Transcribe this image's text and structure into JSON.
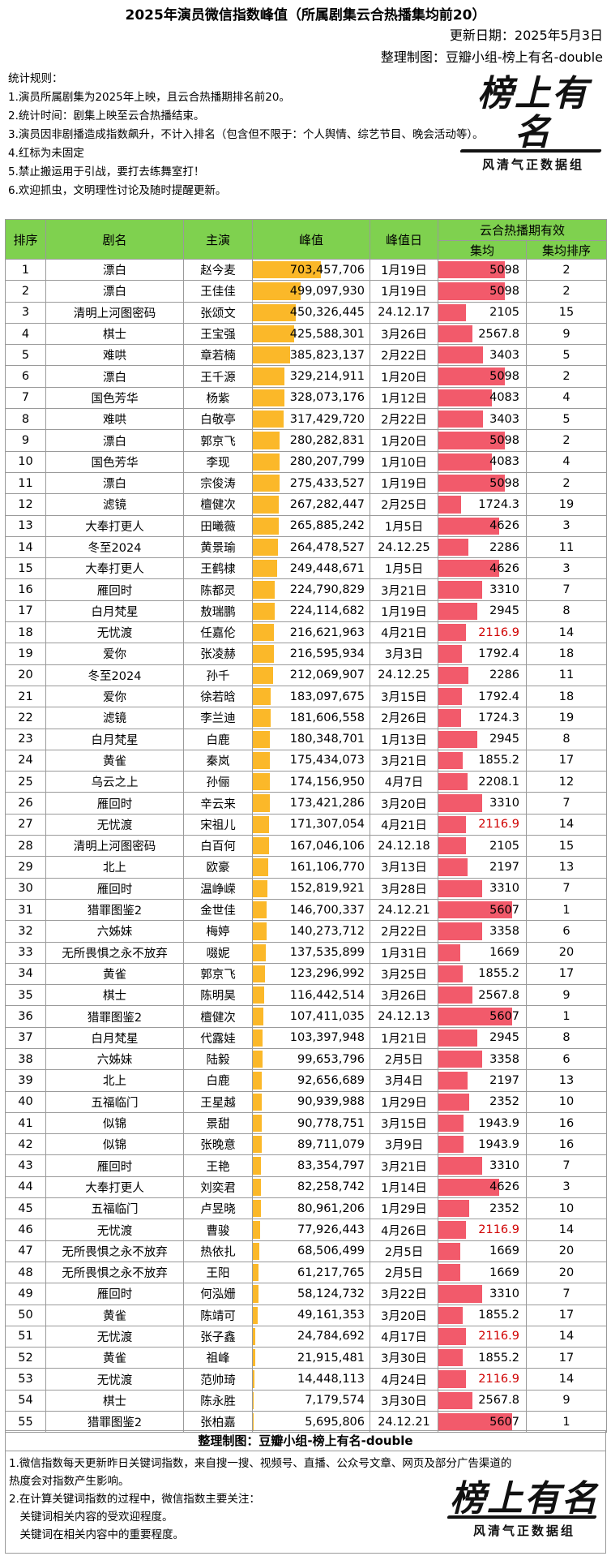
{
  "header": {
    "title": "2025年演员微信指数峰值（所属剧集云合热播集均前20）",
    "update_date": "更新日期：2025年5月3日",
    "author": "整理制图：豆瓣小组-榜上有名-double"
  },
  "rules": [
    "统计规则：",
    "1.演员所属剧集为2025年上映，且云合热播期排名前20。",
    "2.统计时间：剧集上映至云合热播结束。",
    "3.演员因非剧播造成指数飙升，不计入排名（包含但不限于：个人舆情、综艺节目、晚会活动等）。",
    "4.红标为未固定",
    "5.禁止搬运用于引战，要打去练舞室打！",
    "6.欢迎抓虫，文明理性讨论及随时提醒更新。"
  ],
  "logo": {
    "text": "榜上有名",
    "sub": "风清气正数据组"
  },
  "table": {
    "headers": {
      "rank": "排序",
      "drama": "剧名",
      "actor": "主演",
      "peak": "峰值",
      "peak_date": "峰值日",
      "yunhe": "云合热播期有效",
      "avg": "集均",
      "avg_rank": "集均排序"
    },
    "rows": [
      {
        "rank": "1",
        "drama": "漂白",
        "actor": "赵今麦",
        "peak": "703,457,706",
        "peak_value": 703457706,
        "date": "1月19日",
        "avg": "5098",
        "avg_value": 5098,
        "avg_red": false,
        "avg_rank": "2"
      },
      {
        "rank": "2",
        "drama": "漂白",
        "actor": "王佳佳",
        "peak": "499,097,930",
        "peak_value": 499097930,
        "date": "1月19日",
        "avg": "5098",
        "avg_value": 5098,
        "avg_red": false,
        "avg_rank": "2"
      },
      {
        "rank": "3",
        "drama": "清明上河图密码",
        "actor": "张颂文",
        "peak": "450,326,445",
        "peak_value": 450326445,
        "date": "24.12.17",
        "avg": "2105",
        "avg_value": 2105,
        "avg_red": false,
        "avg_rank": "15"
      },
      {
        "rank": "4",
        "drama": "棋士",
        "actor": "王宝强",
        "peak": "425,588,301",
        "peak_value": 425588301,
        "date": "3月26日",
        "avg": "2567.8",
        "avg_value": 2567.8,
        "avg_red": false,
        "avg_rank": "9"
      },
      {
        "rank": "5",
        "drama": "难哄",
        "actor": "章若楠",
        "peak": "385,823,137",
        "peak_value": 385823137,
        "date": "2月22日",
        "avg": "3403",
        "avg_value": 3403,
        "avg_red": false,
        "avg_rank": "5"
      },
      {
        "rank": "6",
        "drama": "漂白",
        "actor": "王千源",
        "peak": "329,214,911",
        "peak_value": 329214911,
        "date": "1月20日",
        "avg": "5098",
        "avg_value": 5098,
        "avg_red": false,
        "avg_rank": "2"
      },
      {
        "rank": "7",
        "drama": "国色芳华",
        "actor": "杨紫",
        "peak": "328,073,176",
        "peak_value": 328073176,
        "date": "1月12日",
        "avg": "4083",
        "avg_value": 4083,
        "avg_red": false,
        "avg_rank": "4"
      },
      {
        "rank": "8",
        "drama": "难哄",
        "actor": "白敬亭",
        "peak": "317,429,720",
        "peak_value": 317429720,
        "date": "2月22日",
        "avg": "3403",
        "avg_value": 3403,
        "avg_red": false,
        "avg_rank": "5"
      },
      {
        "rank": "9",
        "drama": "漂白",
        "actor": "郭京飞",
        "peak": "280,282,831",
        "peak_value": 280282831,
        "date": "1月20日",
        "avg": "5098",
        "avg_value": 5098,
        "avg_red": false,
        "avg_rank": "2"
      },
      {
        "rank": "10",
        "drama": "国色芳华",
        "actor": "李现",
        "peak": "280,207,799",
        "peak_value": 280207799,
        "date": "1月10日",
        "avg": "4083",
        "avg_value": 4083,
        "avg_red": false,
        "avg_rank": "4"
      },
      {
        "rank": "11",
        "drama": "漂白",
        "actor": "宗俊涛",
        "peak": "275,433,527",
        "peak_value": 275433527,
        "date": "1月19日",
        "avg": "5098",
        "avg_value": 5098,
        "avg_red": false,
        "avg_rank": "2"
      },
      {
        "rank": "12",
        "drama": "滤镜",
        "actor": "檀健次",
        "peak": "267,282,447",
        "peak_value": 267282447,
        "date": "2月25日",
        "avg": "1724.3",
        "avg_value": 1724.3,
        "avg_red": false,
        "avg_rank": "19"
      },
      {
        "rank": "13",
        "drama": "大奉打更人",
        "actor": "田曦薇",
        "peak": "265,885,242",
        "peak_value": 265885242,
        "date": "1月5日",
        "avg": "4626",
        "avg_value": 4626,
        "avg_red": false,
        "avg_rank": "3"
      },
      {
        "rank": "14",
        "drama": "冬至2024",
        "actor": "黄景瑜",
        "peak": "264,478,527",
        "peak_value": 264478527,
        "date": "24.12.25",
        "avg": "2286",
        "avg_value": 2286,
        "avg_red": false,
        "avg_rank": "11"
      },
      {
        "rank": "15",
        "drama": "大奉打更人",
        "actor": "王鹤棣",
        "peak": "249,448,671",
        "peak_value": 249448671,
        "date": "1月5日",
        "avg": "4626",
        "avg_value": 4626,
        "avg_red": false,
        "avg_rank": "3"
      },
      {
        "rank": "16",
        "drama": "雁回时",
        "actor": "陈都灵",
        "peak": "224,790,829",
        "peak_value": 224790829,
        "date": "3月21日",
        "avg": "3310",
        "avg_value": 3310,
        "avg_red": false,
        "avg_rank": "7"
      },
      {
        "rank": "17",
        "drama": "白月梵星",
        "actor": "敖瑞鹏",
        "peak": "224,114,682",
        "peak_value": 224114682,
        "date": "1月19日",
        "avg": "2945",
        "avg_value": 2945,
        "avg_red": false,
        "avg_rank": "8"
      },
      {
        "rank": "18",
        "drama": "无忧渡",
        "actor": "任嘉伦",
        "peak": "216,621,963",
        "peak_value": 216621963,
        "date": "4月21日",
        "avg": "2116.9",
        "avg_value": 2116.9,
        "avg_red": true,
        "avg_rank": "14"
      },
      {
        "rank": "19",
        "drama": "爱你",
        "actor": "张凌赫",
        "peak": "216,595,934",
        "peak_value": 216595934,
        "date": "3月3日",
        "avg": "1792.4",
        "avg_value": 1792.4,
        "avg_red": false,
        "avg_rank": "18"
      },
      {
        "rank": "20",
        "drama": "冬至2024",
        "actor": "孙千",
        "peak": "212,069,907",
        "peak_value": 212069907,
        "date": "24.12.25",
        "avg": "2286",
        "avg_value": 2286,
        "avg_red": false,
        "avg_rank": "11"
      },
      {
        "rank": "21",
        "drama": "爱你",
        "actor": "徐若晗",
        "peak": "183,097,675",
        "peak_value": 183097675,
        "date": "3月15日",
        "avg": "1792.4",
        "avg_value": 1792.4,
        "avg_red": false,
        "avg_rank": "18"
      },
      {
        "rank": "22",
        "drama": "滤镜",
        "actor": "李兰迪",
        "peak": "181,606,558",
        "peak_value": 181606558,
        "date": "2月26日",
        "avg": "1724.3",
        "avg_value": 1724.3,
        "avg_red": false,
        "avg_rank": "19"
      },
      {
        "rank": "23",
        "drama": "白月梵星",
        "actor": "白鹿",
        "peak": "180,348,701",
        "peak_value": 180348701,
        "date": "1月13日",
        "avg": "2945",
        "avg_value": 2945,
        "avg_red": false,
        "avg_rank": "8"
      },
      {
        "rank": "24",
        "drama": "黄雀",
        "actor": "秦岚",
        "peak": "175,434,073",
        "peak_value": 175434073,
        "date": "3月21日",
        "avg": "1855.2",
        "avg_value": 1855.2,
        "avg_red": false,
        "avg_rank": "17"
      },
      {
        "rank": "25",
        "drama": "乌云之上",
        "actor": "孙俪",
        "peak": "174,156,950",
        "peak_value": 174156950,
        "date": "4月7日",
        "avg": "2208.1",
        "avg_value": 2208.1,
        "avg_red": false,
        "avg_rank": "12"
      },
      {
        "rank": "26",
        "drama": "雁回时",
        "actor": "辛云来",
        "peak": "173,421,286",
        "peak_value": 173421286,
        "date": "3月20日",
        "avg": "3310",
        "avg_value": 3310,
        "avg_red": false,
        "avg_rank": "7"
      },
      {
        "rank": "27",
        "drama": "无忧渡",
        "actor": "宋祖儿",
        "peak": "171,307,054",
        "peak_value": 171307054,
        "date": "4月21日",
        "avg": "2116.9",
        "avg_value": 2116.9,
        "avg_red": true,
        "avg_rank": "14"
      },
      {
        "rank": "28",
        "drama": "清明上河图密码",
        "actor": "白百何",
        "peak": "167,046,106",
        "peak_value": 167046106,
        "date": "24.12.18",
        "avg": "2105",
        "avg_value": 2105,
        "avg_red": false,
        "avg_rank": "15"
      },
      {
        "rank": "29",
        "drama": "北上",
        "actor": "欧豪",
        "peak": "161,106,770",
        "peak_value": 161106770,
        "date": "3月13日",
        "avg": "2197",
        "avg_value": 2197,
        "avg_red": false,
        "avg_rank": "13"
      },
      {
        "rank": "30",
        "drama": "雁回时",
        "actor": "温峥嵘",
        "peak": "152,819,921",
        "peak_value": 152819921,
        "date": "3月28日",
        "avg": "3310",
        "avg_value": 3310,
        "avg_red": false,
        "avg_rank": "7"
      },
      {
        "rank": "31",
        "drama": "猎罪图鉴2",
        "actor": "金世佳",
        "peak": "146,700,337",
        "peak_value": 146700337,
        "date": "24.12.21",
        "avg": "5607",
        "avg_value": 5607,
        "avg_red": false,
        "avg_rank": "1"
      },
      {
        "rank": "32",
        "drama": "六姊妹",
        "actor": "梅婷",
        "peak": "140,273,712",
        "peak_value": 140273712,
        "date": "2月22日",
        "avg": "3358",
        "avg_value": 3358,
        "avg_red": false,
        "avg_rank": "6"
      },
      {
        "rank": "33",
        "drama": "无所畏惧之永不放弃",
        "actor": "啜妮",
        "peak": "137,535,899",
        "peak_value": 137535899,
        "date": "1月31日",
        "avg": "1669",
        "avg_value": 1669,
        "avg_red": false,
        "avg_rank": "20"
      },
      {
        "rank": "34",
        "drama": "黄雀",
        "actor": "郭京飞",
        "peak": "123,296,992",
        "peak_value": 123296992,
        "date": "3月25日",
        "avg": "1855.2",
        "avg_value": 1855.2,
        "avg_red": false,
        "avg_rank": "17"
      },
      {
        "rank": "35",
        "drama": "棋士",
        "actor": "陈明昊",
        "peak": "116,442,514",
        "peak_value": 116442514,
        "date": "3月26日",
        "avg": "2567.8",
        "avg_value": 2567.8,
        "avg_red": false,
        "avg_rank": "9"
      },
      {
        "rank": "36",
        "drama": "猎罪图鉴2",
        "actor": "檀健次",
        "peak": "107,411,035",
        "peak_value": 107411035,
        "date": "24.12.13",
        "avg": "5607",
        "avg_value": 5607,
        "avg_red": false,
        "avg_rank": "1"
      },
      {
        "rank": "37",
        "drama": "白月梵星",
        "actor": "代露娃",
        "peak": "103,397,948",
        "peak_value": 103397948,
        "date": "1月21日",
        "avg": "2945",
        "avg_value": 2945,
        "avg_red": false,
        "avg_rank": "8"
      },
      {
        "rank": "38",
        "drama": "六姊妹",
        "actor": "陆毅",
        "peak": "99,653,796",
        "peak_value": 99653796,
        "date": "2月5日",
        "avg": "3358",
        "avg_value": 3358,
        "avg_red": false,
        "avg_rank": "6"
      },
      {
        "rank": "39",
        "drama": "北上",
        "actor": "白鹿",
        "peak": "92,656,689",
        "peak_value": 92656689,
        "date": "3月4日",
        "avg": "2197",
        "avg_value": 2197,
        "avg_red": false,
        "avg_rank": "13"
      },
      {
        "rank": "40",
        "drama": "五福临门",
        "actor": "王星越",
        "peak": "90,939,988",
        "peak_value": 90939988,
        "date": "1月29日",
        "avg": "2352",
        "avg_value": 2352,
        "avg_red": false,
        "avg_rank": "10"
      },
      {
        "rank": "41",
        "drama": "似锦",
        "actor": "景甜",
        "peak": "90,778,751",
        "peak_value": 90778751,
        "date": "3月15日",
        "avg": "1943.9",
        "avg_value": 1943.9,
        "avg_red": false,
        "avg_rank": "16"
      },
      {
        "rank": "42",
        "drama": "似锦",
        "actor": "张晚意",
        "peak": "89,711,079",
        "peak_value": 89711079,
        "date": "3月9日",
        "avg": "1943.9",
        "avg_value": 1943.9,
        "avg_red": false,
        "avg_rank": "16"
      },
      {
        "rank": "43",
        "drama": "雁回时",
        "actor": "王艳",
        "peak": "83,354,797",
        "peak_value": 83354797,
        "date": "3月21日",
        "avg": "3310",
        "avg_value": 3310,
        "avg_red": false,
        "avg_rank": "7"
      },
      {
        "rank": "44",
        "drama": "大奉打更人",
        "actor": "刘奕君",
        "peak": "82,258,742",
        "peak_value": 82258742,
        "date": "1月14日",
        "avg": "4626",
        "avg_value": 4626,
        "avg_red": false,
        "avg_rank": "3"
      },
      {
        "rank": "45",
        "drama": "五福临门",
        "actor": "卢昱晓",
        "peak": "80,961,206",
        "peak_value": 80961206,
        "date": "1月29日",
        "avg": "2352",
        "avg_value": 2352,
        "avg_red": false,
        "avg_rank": "10"
      },
      {
        "rank": "46",
        "drama": "无忧渡",
        "actor": "曹骏",
        "peak": "77,926,443",
        "peak_value": 77926443,
        "date": "4月26日",
        "avg": "2116.9",
        "avg_value": 2116.9,
        "avg_red": true,
        "avg_rank": "14"
      },
      {
        "rank": "47",
        "drama": "无所畏惧之永不放弃",
        "actor": "热依扎",
        "peak": "68,506,499",
        "peak_value": 68506499,
        "date": "2月5日",
        "avg": "1669",
        "avg_value": 1669,
        "avg_red": false,
        "avg_rank": "20"
      },
      {
        "rank": "48",
        "drama": "无所畏惧之永不放弃",
        "actor": "王阳",
        "peak": "61,217,765",
        "peak_value": 61217765,
        "date": "2月5日",
        "avg": "1669",
        "avg_value": 1669,
        "avg_red": false,
        "avg_rank": "20"
      },
      {
        "rank": "49",
        "drama": "雁回时",
        "actor": "何泓姗",
        "peak": "58,124,732",
        "peak_value": 58124732,
        "date": "3月22日",
        "avg": "3310",
        "avg_value": 3310,
        "avg_red": false,
        "avg_rank": "7"
      },
      {
        "rank": "50",
        "drama": "黄雀",
        "actor": "陈靖可",
        "peak": "49,161,353",
        "peak_value": 49161353,
        "date": "3月20日",
        "avg": "1855.2",
        "avg_value": 1855.2,
        "avg_red": false,
        "avg_rank": "17"
      },
      {
        "rank": "51",
        "drama": "无忧渡",
        "actor": "张子鑫",
        "peak": "24,784,692",
        "peak_value": 24784692,
        "date": "4月17日",
        "avg": "2116.9",
        "avg_value": 2116.9,
        "avg_red": true,
        "avg_rank": "14"
      },
      {
        "rank": "52",
        "drama": "黄雀",
        "actor": "祖峰",
        "peak": "21,915,481",
        "peak_value": 21915481,
        "date": "3月30日",
        "avg": "1855.2",
        "avg_value": 1855.2,
        "avg_red": false,
        "avg_rank": "17"
      },
      {
        "rank": "53",
        "drama": "无忧渡",
        "actor": "范帅琦",
        "peak": "14,448,113",
        "peak_value": 14448113,
        "date": "4月24日",
        "avg": "2116.9",
        "avg_value": 2116.9,
        "avg_red": true,
        "avg_rank": "14"
      },
      {
        "rank": "54",
        "drama": "棋士",
        "actor": "陈永胜",
        "peak": "7,179,574",
        "peak_value": 7179574,
        "date": "3月30日",
        "avg": "2567.8",
        "avg_value": 2567.8,
        "avg_red": false,
        "avg_rank": "9"
      },
      {
        "rank": "55",
        "drama": "猎罪图鉴2",
        "actor": "张柏嘉",
        "peak": "5,695,806",
        "peak_value": 5695806,
        "date": "24.12.21",
        "avg": "5607",
        "avg_value": 5607,
        "avg_red": false,
        "avg_rank": "1"
      }
    ]
  },
  "footer": {
    "title": "整理制图：豆瓣小组-榜上有名-double",
    "notes": [
      "1.微信指数每天更新昨日关键词指数，来自搜一搜、视频号、直播、公众号文章、网页及部分广告渠道的",
      "热度会对指数产生影响。",
      "2.在计算关键词指数的过程中，微信指数主要关注：",
      "　关键词相关内容的受欢迎程度。",
      "　关键词在相关内容中的重要程度。"
    ]
  },
  "colors": {
    "header_green": "#7fd14f",
    "peak_bar": "#fbb829",
    "avg_bar": "#f25a6b",
    "unfixed_red": "#d00000"
  }
}
